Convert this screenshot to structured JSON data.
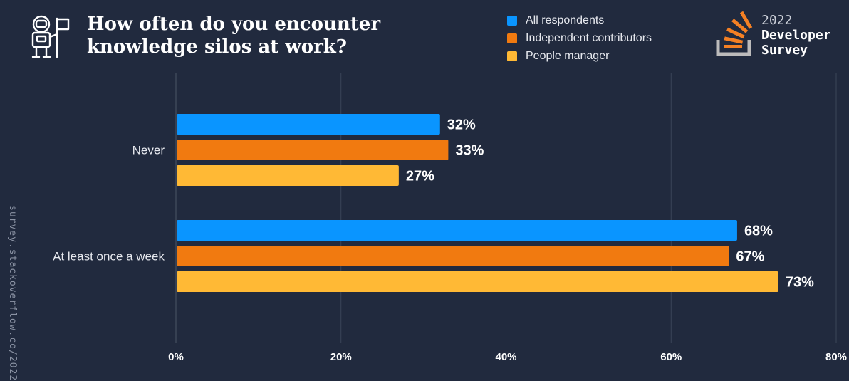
{
  "header": {
    "title_line1": "How often do you encounter",
    "title_line2": "knowledge silos at work?",
    "icon": "astronaut-flag-icon"
  },
  "branding": {
    "logo_icon": "stackoverflow-logo-icon",
    "year": "2022",
    "title_line1": "Developer",
    "title_line2": "Survey",
    "watermark": "survey.stackoverflow.co/2022"
  },
  "colors": {
    "background": "#212a3e",
    "gridline": "#3b4558",
    "all": "#0a95ff",
    "independent": "#f17a10",
    "manager": "#ffb935"
  },
  "chart_data": {
    "type": "bar",
    "orientation": "horizontal",
    "title": "How often do you encounter knowledge silos at work?",
    "categories": [
      "Never",
      "At least once a week"
    ],
    "series": [
      {
        "name": "All respondents",
        "values": [
          32,
          68
        ],
        "labels": [
          "32%",
          "68%"
        ]
      },
      {
        "name": "Independent contributors",
        "values": [
          33,
          67
        ],
        "labels": [
          "33%",
          "67%"
        ]
      },
      {
        "name": "People manager",
        "values": [
          27,
          73
        ],
        "labels": [
          "27%",
          "73%"
        ]
      }
    ],
    "xlim": [
      0,
      80
    ],
    "xticks": [
      0,
      20,
      40,
      60,
      80
    ],
    "xtick_labels": [
      "0%",
      "20%",
      "40%",
      "60%",
      "80%"
    ],
    "xlabel": "",
    "ylabel": "",
    "grid": true,
    "legend_position": "top-right"
  }
}
